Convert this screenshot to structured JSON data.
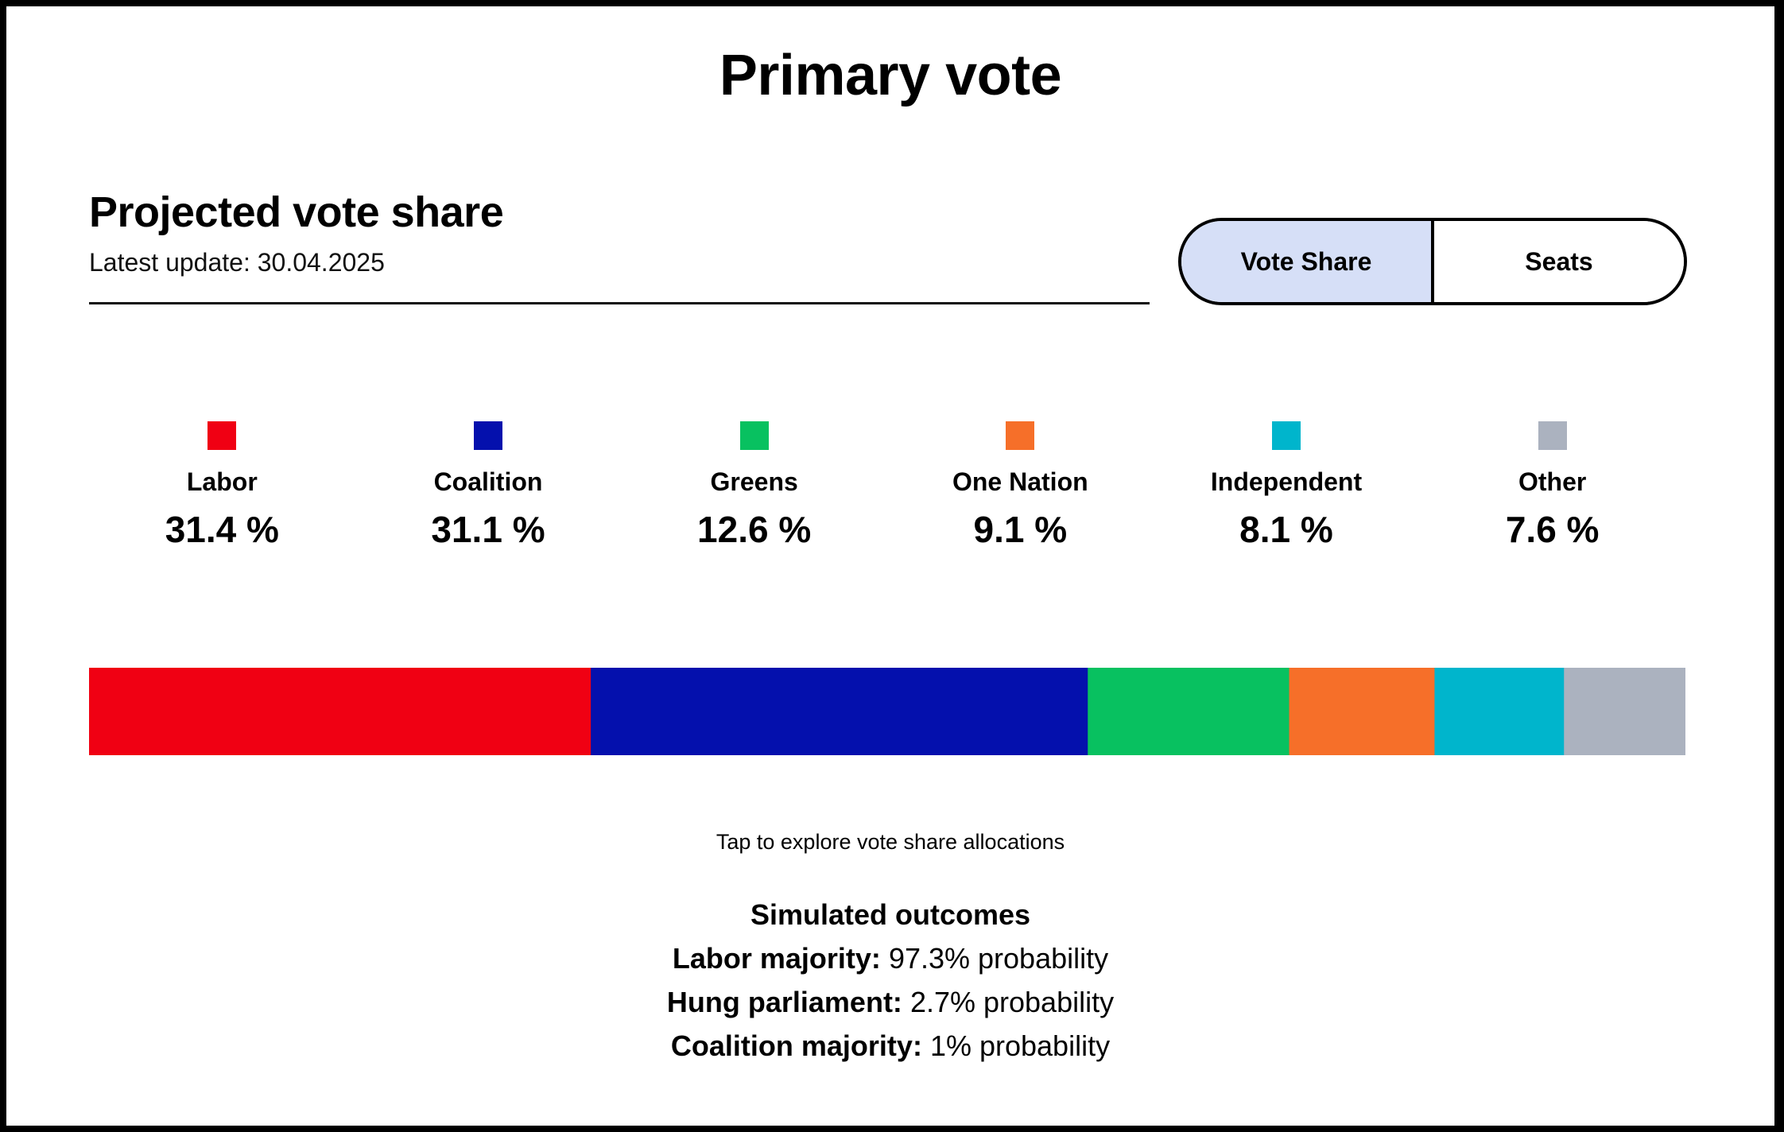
{
  "page_title": "Primary vote",
  "section": {
    "title": "Projected vote share",
    "update": "Latest update: 30.04.2025"
  },
  "toggle": {
    "vote_share": "Vote Share",
    "seats": "Seats",
    "active": "Vote Share",
    "active_color": "#d6dff7"
  },
  "chart_data": {
    "type": "bar",
    "orientation": "horizontal-stacked",
    "categories": [
      "Labor",
      "Coalition",
      "Greens",
      "One Nation",
      "Independent",
      "Other"
    ],
    "values": [
      31.4,
      31.1,
      12.6,
      9.1,
      8.1,
      7.6
    ],
    "value_labels": [
      "31.4 %",
      "31.1 %",
      "12.6 %",
      "9.1 %",
      "8.1 %",
      "7.6 %"
    ],
    "colors": [
      "#f00013",
      "#0410ad",
      "#08c160",
      "#f66f29",
      "#00b5cc",
      "#abb2bf"
    ],
    "unit": "%"
  },
  "hint": "Tap to explore vote share allocations",
  "outcomes": {
    "heading": "Simulated outcomes",
    "items": [
      {
        "label": "Labor majority:",
        "value": "97.3% probability"
      },
      {
        "label": "Hung parliament:",
        "value": "2.7% probability"
      },
      {
        "label": "Coalition majority:",
        "value": "1% probability"
      }
    ]
  }
}
